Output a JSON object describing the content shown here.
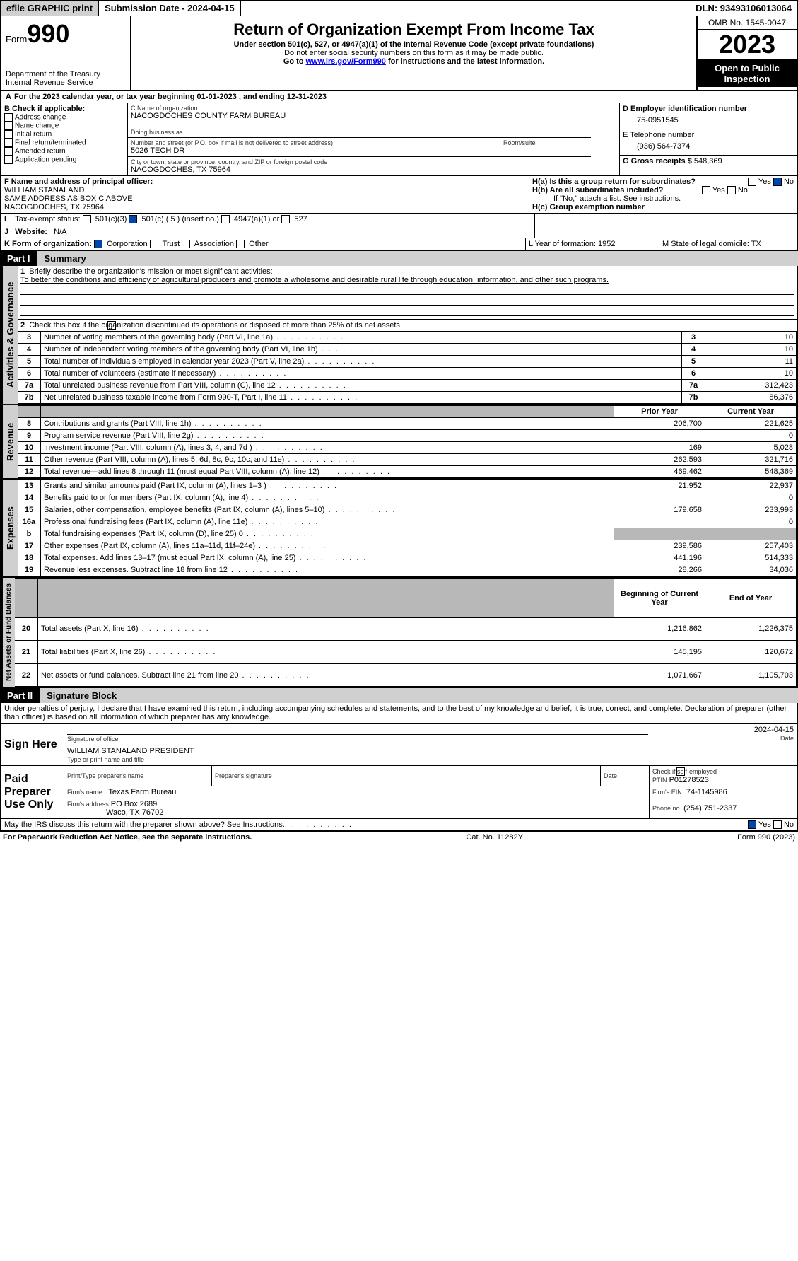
{
  "topbar": {
    "efile": "efile GRAPHIC print",
    "sub_label": "Submission Date - 2024-04-15",
    "dln": "DLN: 93493106013064"
  },
  "header": {
    "form_prefix": "Form",
    "form_num": "990",
    "dept": "Department of the Treasury",
    "irs": "Internal Revenue Service",
    "title": "Return of Organization Exempt From Income Tax",
    "subtitle": "Under section 501(c), 527, or 4947(a)(1) of the Internal Revenue Code (except private foundations)",
    "warn": "Do not enter social security numbers on this form as it may be made public.",
    "goto_pre": "Go to ",
    "goto_url": "www.irs.gov/Form990",
    "goto_post": " for instructions and the latest information.",
    "omb": "OMB No. 1545-0047",
    "year": "2023",
    "inspect": "Open to Public Inspection"
  },
  "periodA": {
    "text": "For the 2023 calendar year, or tax year beginning 01-01-2023   , and ending 12-31-2023",
    "prefix": "A"
  },
  "boxB": {
    "title": "B Check if applicable:",
    "opts": [
      "Address change",
      "Name change",
      "Initial return",
      "Final return/terminated",
      "Amended return",
      "Application pending"
    ]
  },
  "boxC": {
    "name_lbl": "C Name of organization",
    "name": "NACOGDOCHES COUNTY FARM BUREAU",
    "dba_lbl": "Doing business as",
    "dba": "",
    "street_lbl": "Number and street (or P.O. box if mail is not delivered to street address)",
    "street": "5026 TECH DR",
    "room_lbl": "Room/suite",
    "room": "",
    "city_lbl": "City or town, state or province, country, and ZIP or foreign postal code",
    "city": "NACOGDOCHES, TX  75964"
  },
  "boxD": {
    "lbl": "D Employer identification number",
    "val": "75-0951545"
  },
  "boxE": {
    "lbl": "E Telephone number",
    "val": "(936) 564-7374"
  },
  "boxG": {
    "lbl": "G Gross receipts $",
    "val": "548,369"
  },
  "boxF": {
    "lbl": "F  Name and address of principal officer:",
    "l1": "WILLIAM STANALAND",
    "l2": "SAME ADDRESS AS BOX C ABOVE",
    "l3": "NACOGDOCHES, TX  75964"
  },
  "boxH": {
    "a": "H(a)  Is this a group return for subordinates?",
    "a_yes": "Yes",
    "a_no": "No",
    "b": "H(b)  Are all subordinates included?",
    "b_yes": "Yes",
    "b_no": "No",
    "note": "If \"No,\" attach a list. See instructions.",
    "c": "H(c)  Group exemption number"
  },
  "boxI": {
    "lbl": "Tax-exempt status:",
    "o1": "501(c)(3)",
    "o2": "501(c) ( 5 ) (insert no.)",
    "o3": "4947(a)(1) or",
    "o4": "527"
  },
  "boxJ": {
    "lbl": "Website:",
    "val": "N/A"
  },
  "boxK": {
    "lbl": "K Form of organization:",
    "o1": "Corporation",
    "o2": "Trust",
    "o3": "Association",
    "o4": "Other"
  },
  "boxL": {
    "lbl": "L Year of formation: 1952"
  },
  "boxM": {
    "lbl": "M State of legal domicile: TX"
  },
  "part1": {
    "part": "Part I",
    "title": "Summary"
  },
  "summary": {
    "q1_lbl": "Briefly describe the organization's mission or most significant activities:",
    "q1": "To better the conditions and efficiency of agricultural producers and promote a wholesome and desirable rural life through education, information, and other such programs.",
    "q2": "Check this box        if the organization discontinued its operations or disposed of more than 25% of its net assets.",
    "rows_gov": [
      {
        "n": "3",
        "t": "Number of voting members of the governing body (Part VI, line 1a)",
        "v": "10"
      },
      {
        "n": "4",
        "t": "Number of independent voting members of the governing body (Part VI, line 1b)",
        "v": "10"
      },
      {
        "n": "5",
        "t": "Total number of individuals employed in calendar year 2023 (Part V, line 2a)",
        "v": "11"
      },
      {
        "n": "6",
        "t": "Total number of volunteers (estimate if necessary)",
        "v": "10"
      },
      {
        "n": "7a",
        "t": "Total unrelated business revenue from Part VIII, column (C), line 12",
        "v": "312,423"
      },
      {
        "n": "7b",
        "t": "Net unrelated business taxable income from Form 990-T, Part I, line 11",
        "v": "86,376",
        "no_num_col": true
      }
    ],
    "hdr_prior": "Prior Year",
    "hdr_curr": "Current Year",
    "rev": [
      {
        "n": "8",
        "t": "Contributions and grants (Part VIII, line 1h)",
        "p": "206,700",
        "c": "221,625"
      },
      {
        "n": "9",
        "t": "Program service revenue (Part VIII, line 2g)",
        "p": "",
        "c": "0"
      },
      {
        "n": "10",
        "t": "Investment income (Part VIII, column (A), lines 3, 4, and 7d )",
        "p": "169",
        "c": "5,028"
      },
      {
        "n": "11",
        "t": "Other revenue (Part VIII, column (A), lines 5, 6d, 8c, 9c, 10c, and 11e)",
        "p": "262,593",
        "c": "321,716"
      },
      {
        "n": "12",
        "t": "Total revenue—add lines 8 through 11 (must equal Part VIII, column (A), line 12)",
        "p": "469,462",
        "c": "548,369"
      }
    ],
    "exp": [
      {
        "n": "13",
        "t": "Grants and similar amounts paid (Part IX, column (A), lines 1–3 )",
        "p": "21,952",
        "c": "22,937"
      },
      {
        "n": "14",
        "t": "Benefits paid to or for members (Part IX, column (A), line 4)",
        "p": "",
        "c": "0"
      },
      {
        "n": "15",
        "t": "Salaries, other compensation, employee benefits (Part IX, column (A), lines 5–10)",
        "p": "179,658",
        "c": "233,993"
      },
      {
        "n": "16a",
        "t": "Professional fundraising fees (Part IX, column (A), line 11e)",
        "p": "",
        "c": "0"
      },
      {
        "n": "b",
        "t": "Total fundraising expenses (Part IX, column (D), line 25) 0",
        "p": "SHADE",
        "c": "SHADE"
      },
      {
        "n": "17",
        "t": "Other expenses (Part IX, column (A), lines 11a–11d, 11f–24e)",
        "p": "239,586",
        "c": "257,403"
      },
      {
        "n": "18",
        "t": "Total expenses. Add lines 13–17 (must equal Part IX, column (A), line 25)",
        "p": "441,196",
        "c": "514,333"
      },
      {
        "n": "19",
        "t": "Revenue less expenses. Subtract line 18 from line 12",
        "p": "28,266",
        "c": "34,036"
      }
    ],
    "hdr_beg": "Beginning of Current Year",
    "hdr_end": "End of Year",
    "net": [
      {
        "n": "20",
        "t": "Total assets (Part X, line 16)",
        "p": "1,216,862",
        "c": "1,226,375"
      },
      {
        "n": "21",
        "t": "Total liabilities (Part X, line 26)",
        "p": "145,195",
        "c": "120,672"
      },
      {
        "n": "22",
        "t": "Net assets or fund balances. Subtract line 21 from line 20",
        "p": "1,071,667",
        "c": "1,105,703"
      }
    ],
    "tab_gov": "Activities & Governance",
    "tab_rev": "Revenue",
    "tab_exp": "Expenses",
    "tab_net": "Net Assets or Fund Balances"
  },
  "part2": {
    "part": "Part II",
    "title": "Signature Block"
  },
  "sig": {
    "decl": "Under penalties of perjury, I declare that I have examined this return, including accompanying schedules and statements, and to the best of my knowledge and belief, it is true, correct, and complete. Declaration of preparer (other than officer) is based on all information of which preparer has any knowledge.",
    "sign_here": "Sign Here",
    "officer_sig": "Signature of officer",
    "date": "2024-04-15",
    "officer_name": "WILLIAM STANALAND  PRESIDENT",
    "name_lbl": "Type or print name and title",
    "paid": "Paid Preparer Use Only",
    "prep_name_lbl": "Print/Type preparer's name",
    "prep_sig_lbl": "Preparer's signature",
    "date_lbl": "Date",
    "self_lbl": "Check        if self-employed",
    "ptin_lbl": "PTIN",
    "ptin": "P01278523",
    "firm_name_lbl": "Firm's name",
    "firm_name": "Texas Farm Bureau",
    "firm_ein_lbl": "Firm's EIN",
    "firm_ein": "74-1145986",
    "firm_addr_lbl": "Firm's address",
    "firm_addr1": "PO Box 2689",
    "firm_addr2": "Waco, TX  76702",
    "phone_lbl": "Phone no.",
    "phone": "(254) 751-2337",
    "discuss": "May the IRS discuss this return with the preparer shown above? See Instructions.",
    "yes": "Yes",
    "no": "No"
  },
  "footer": {
    "l": "For Paperwork Reduction Act Notice, see the separate instructions.",
    "m": "Cat. No. 11282Y",
    "r": "Form 990 (2023)"
  }
}
